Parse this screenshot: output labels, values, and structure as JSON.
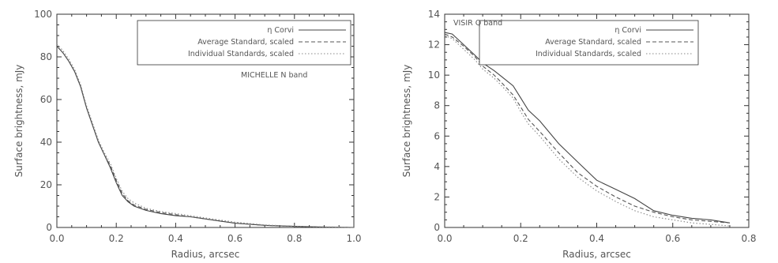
{
  "chart_data": [
    {
      "type": "line",
      "title": "",
      "annotation": "MICHELLE N band",
      "xlabel": "Radius, arcsec",
      "ylabel": "Surface brightness, mJy",
      "xlim": [
        0.0,
        1.0
      ],
      "ylim": [
        0,
        100
      ],
      "xticks": [
        "0.0",
        "0.2",
        "0.4",
        "0.6",
        "0.8",
        "1.0"
      ],
      "xtick_values": [
        0.0,
        0.2,
        0.4,
        0.6,
        0.8,
        1.0
      ],
      "yticks": [
        "0",
        "20",
        "40",
        "60",
        "80",
        "100"
      ],
      "ytick_values": [
        0,
        20,
        40,
        60,
        80,
        100
      ],
      "legend_position": "top-right",
      "series": [
        {
          "name": "η Corvi",
          "style": "solid",
          "color": "#444444",
          "x": [
            0.0,
            0.02,
            0.04,
            0.06,
            0.08,
            0.1,
            0.12,
            0.14,
            0.16,
            0.18,
            0.2,
            0.22,
            0.24,
            0.26,
            0.3,
            0.35,
            0.4,
            0.45,
            0.5,
            0.55,
            0.6,
            0.65,
            0.7,
            0.8,
            0.9,
            1.0
          ],
          "y": [
            85,
            82,
            78,
            73,
            66,
            56,
            48,
            40,
            34,
            28,
            21,
            15,
            12,
            10,
            8,
            6.5,
            5.5,
            5,
            4,
            3,
            2,
            1.5,
            1,
            0.5,
            0.2,
            0
          ]
        },
        {
          "name": "Average Standard, scaled",
          "style": "dashed",
          "color": "#555555",
          "x": [
            0.0,
            0.02,
            0.04,
            0.06,
            0.08,
            0.1,
            0.12,
            0.14,
            0.16,
            0.18,
            0.2,
            0.22,
            0.24,
            0.26,
            0.3,
            0.35,
            0.4,
            0.45,
            0.5,
            0.55,
            0.6,
            0.65,
            0.7,
            0.8,
            0.9,
            1.0
          ],
          "y": [
            85,
            82,
            78,
            73,
            66,
            56,
            48,
            40,
            34,
            29,
            22,
            16,
            12.5,
            10.5,
            8.5,
            7,
            6,
            5,
            4,
            3,
            2,
            1.5,
            1,
            0.5,
            0.2,
            0
          ]
        },
        {
          "name": "Individual Standards, scaled",
          "style": "dotted",
          "color": "#888888",
          "x": [
            0.0,
            0.02,
            0.04,
            0.06,
            0.08,
            0.1,
            0.12,
            0.14,
            0.16,
            0.18,
            0.2,
            0.22,
            0.24,
            0.26,
            0.3,
            0.35,
            0.4,
            0.45,
            0.5,
            0.55,
            0.6,
            0.65,
            0.7,
            0.8,
            0.9,
            1.0
          ],
          "y": [
            86,
            83,
            79,
            74,
            67,
            57,
            49,
            41,
            35,
            30,
            23,
            17,
            13.5,
            11.5,
            9,
            7.5,
            6.5,
            5.5,
            4.5,
            3.5,
            2.5,
            1.8,
            1.2,
            0.6,
            0.3,
            0.1
          ]
        }
      ]
    },
    {
      "type": "line",
      "title": "",
      "annotation": "VISIR Q band",
      "xlabel": "Radius, arcsec",
      "ylabel": "Surface brightness, mJy",
      "xlim": [
        0.0,
        0.8
      ],
      "ylim": [
        0,
        14
      ],
      "xticks": [
        "0.0",
        "0.2",
        "0.4",
        "0.6",
        "0.8"
      ],
      "xtick_values": [
        0.0,
        0.2,
        0.4,
        0.6,
        0.8
      ],
      "yticks": [
        "0",
        "2",
        "4",
        "6",
        "8",
        "10",
        "12",
        "14"
      ],
      "ytick_values": [
        0,
        2,
        4,
        6,
        8,
        10,
        12,
        14
      ],
      "legend_position": "top-right",
      "series": [
        {
          "name": "η Corvi",
          "style": "solid",
          "color": "#444444",
          "x": [
            0.0,
            0.02,
            0.05,
            0.08,
            0.1,
            0.13,
            0.15,
            0.18,
            0.2,
            0.22,
            0.25,
            0.3,
            0.35,
            0.4,
            0.45,
            0.5,
            0.55,
            0.6,
            0.65,
            0.7,
            0.75
          ],
          "y": [
            12.8,
            12.7,
            12.0,
            11.3,
            10.8,
            10.3,
            9.9,
            9.3,
            8.5,
            7.7,
            7.0,
            5.5,
            4.3,
            3.1,
            2.5,
            1.9,
            1.1,
            0.8,
            0.6,
            0.5,
            0.3
          ]
        },
        {
          "name": "Average Standard, scaled",
          "style": "dashed",
          "color": "#555555",
          "x": [
            0.0,
            0.02,
            0.05,
            0.08,
            0.1,
            0.13,
            0.15,
            0.18,
            0.2,
            0.22,
            0.25,
            0.3,
            0.35,
            0.4,
            0.45,
            0.5,
            0.55,
            0.6,
            0.65,
            0.7,
            0.75
          ],
          "y": [
            12.7,
            12.5,
            11.9,
            11.2,
            10.6,
            10.0,
            9.5,
            8.7,
            7.9,
            7.1,
            6.3,
            4.9,
            3.6,
            2.7,
            2.0,
            1.4,
            1.0,
            0.7,
            0.5,
            0.4,
            0.3
          ]
        },
        {
          "name": "Individual Standards, scaled",
          "style": "dotted",
          "color": "#888888",
          "x": [
            0.0,
            0.02,
            0.05,
            0.08,
            0.1,
            0.13,
            0.15,
            0.18,
            0.2,
            0.22,
            0.25,
            0.3,
            0.35,
            0.4,
            0.45,
            0.5,
            0.55,
            0.6,
            0.65,
            0.7,
            0.75
          ],
          "y": [
            12.6,
            12.4,
            11.7,
            11.0,
            10.4,
            9.8,
            9.3,
            8.5,
            7.6,
            6.8,
            6.0,
            4.5,
            3.3,
            2.4,
            1.7,
            1.1,
            0.7,
            0.5,
            0.3,
            0.2,
            0.1
          ]
        }
      ]
    }
  ]
}
